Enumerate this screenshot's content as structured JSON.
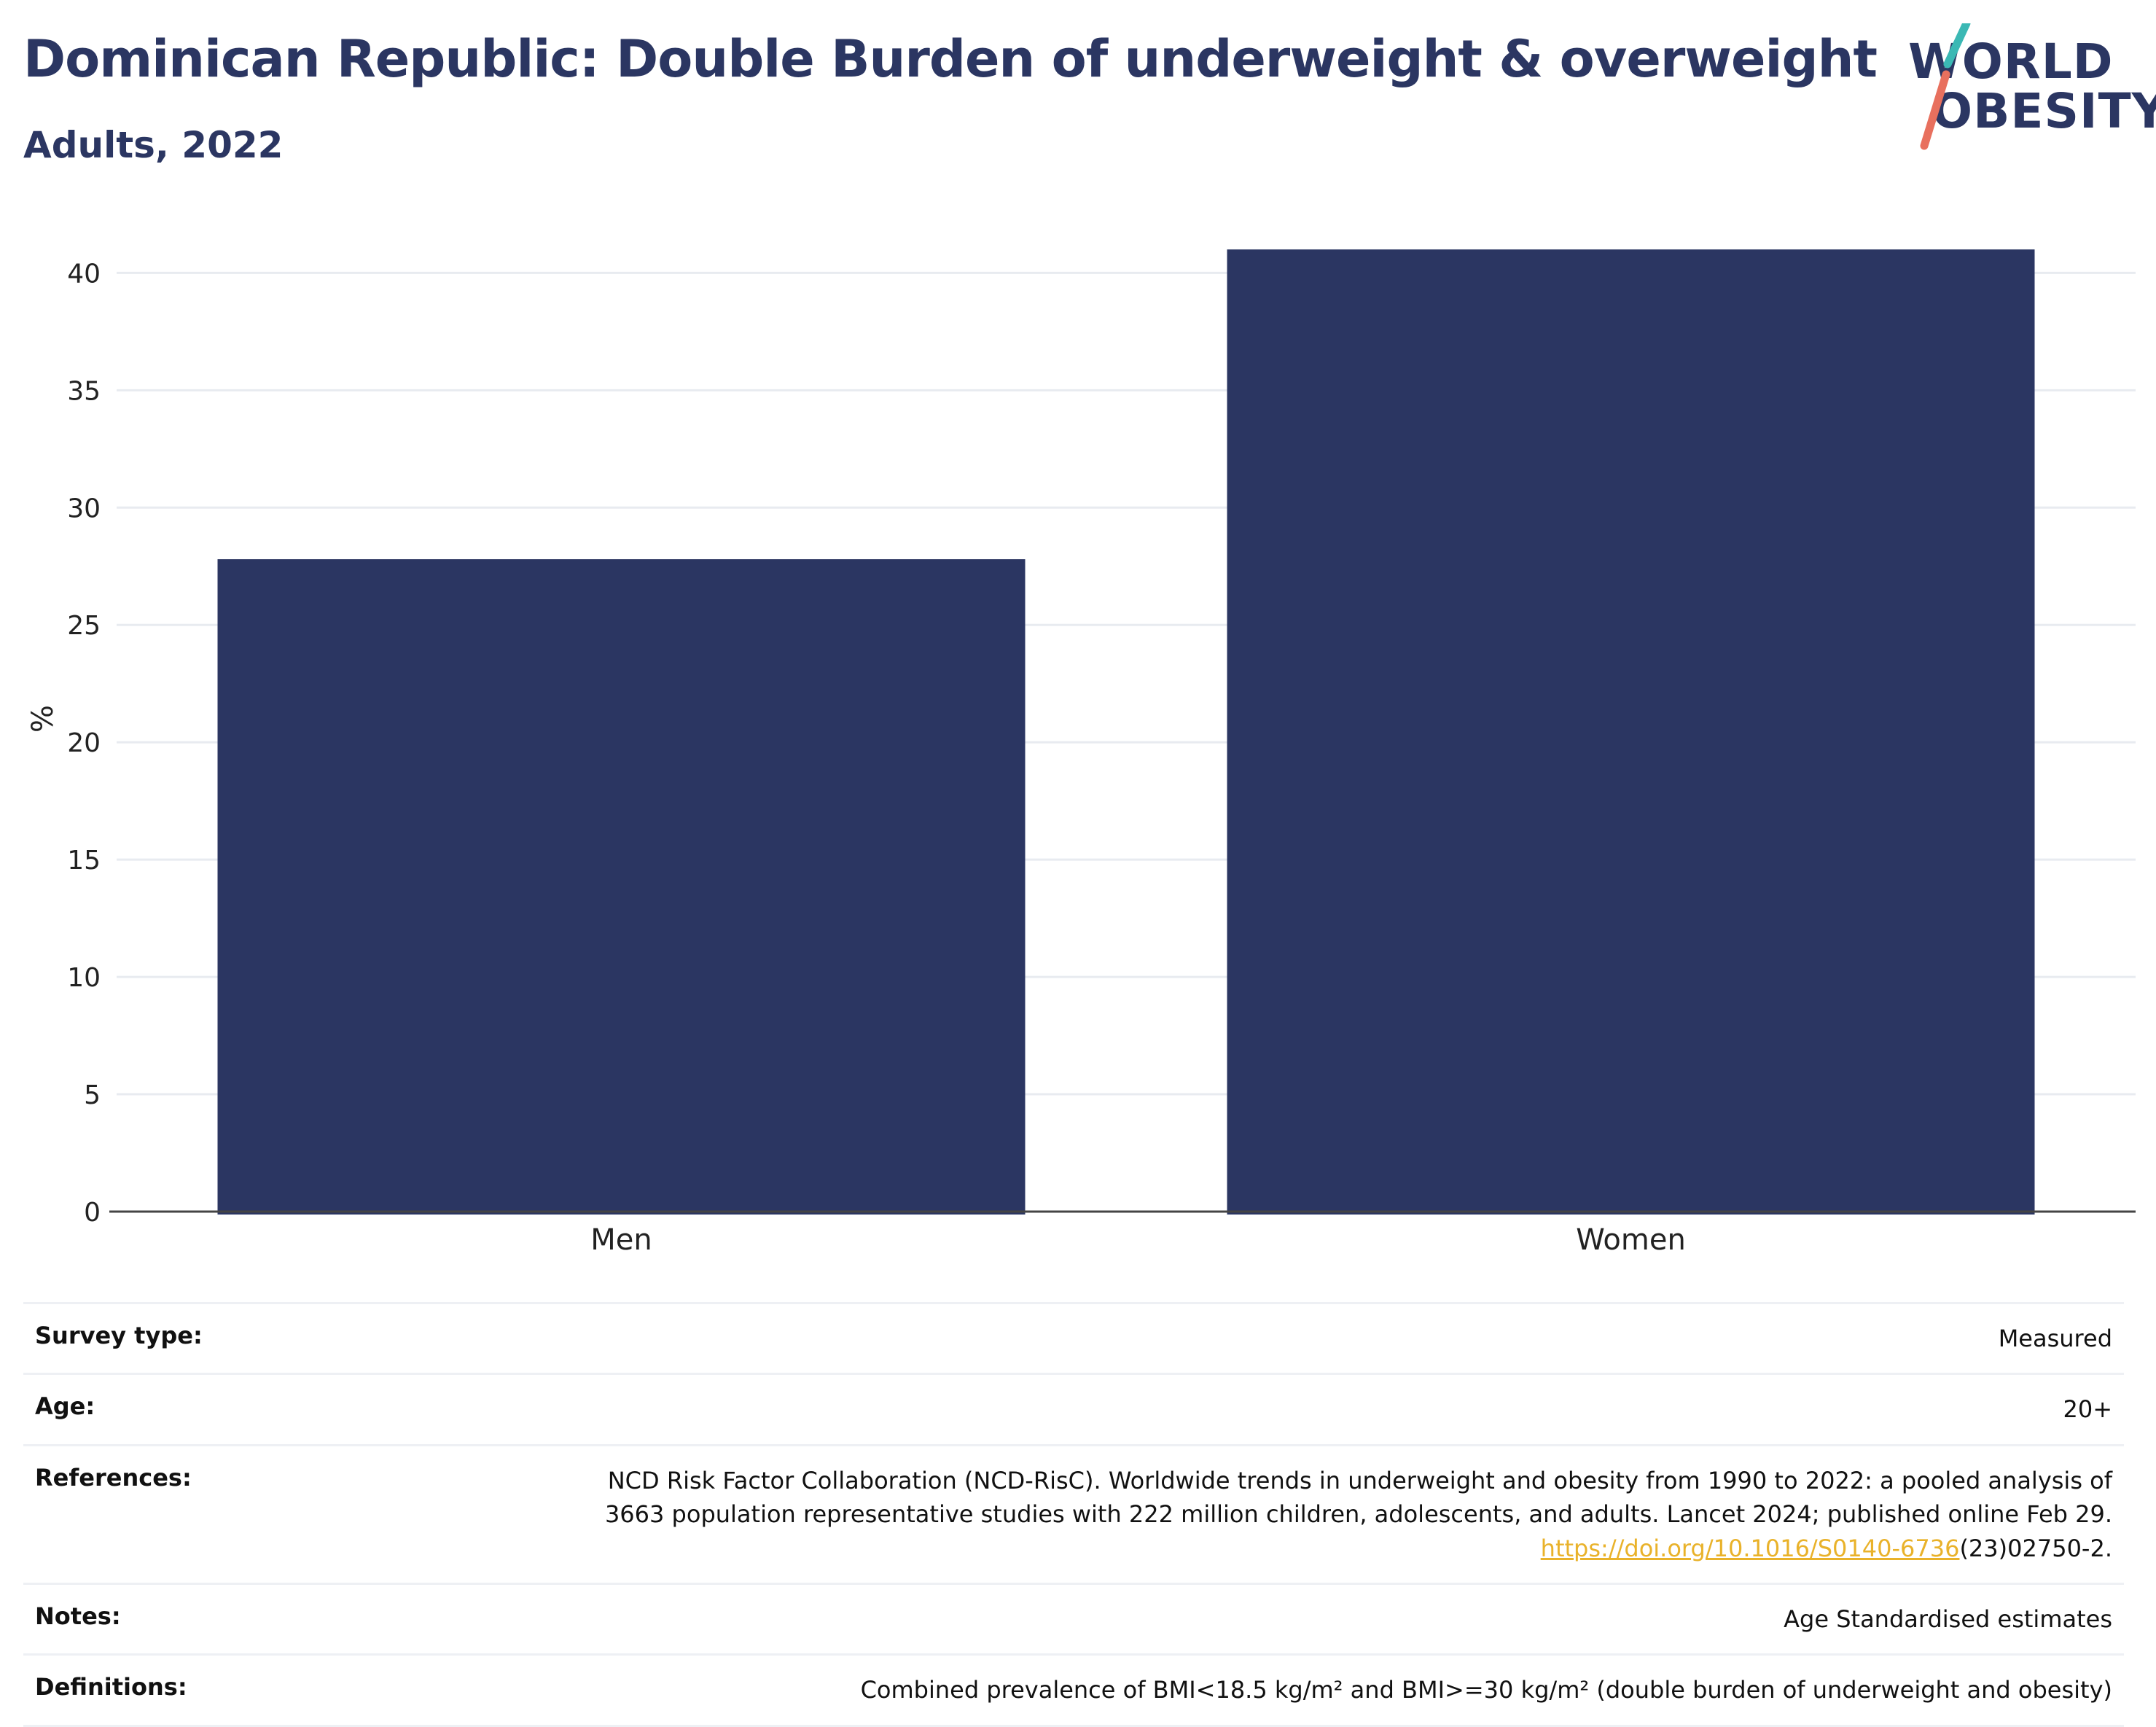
{
  "header": {
    "title": "Dominican Republic: Double Burden of underweight & overweight",
    "subtitle": "Adults, 2022"
  },
  "logo": {
    "line1": "WORLD",
    "line2": "OBESITY",
    "colors": {
      "text": "#2b3662",
      "slash_top": "#3bb8b4",
      "slash_bottom": "#e8705e"
    }
  },
  "chart_data": {
    "type": "bar",
    "categories": [
      "Men",
      "Women"
    ],
    "values": [
      27.8,
      41.0
    ],
    "ylabel": "%",
    "ylim": [
      0,
      42
    ],
    "yticks": [
      0,
      5,
      10,
      15,
      20,
      25,
      30,
      35,
      40
    ],
    "grid": true,
    "bar_color": "#2b3662"
  },
  "info": {
    "survey_type": {
      "label": "Survey type:",
      "value": "Measured"
    },
    "age": {
      "label": "Age:",
      "value": "20+"
    },
    "references": {
      "label": "References:",
      "line1": "NCD Risk Factor Collaboration (NCD-RisC). Worldwide trends in underweight and obesity from 1990 to 2022: a pooled analysis of",
      "line2": "3663 population representative studies with 222 million children, adolescents, and adults. Lancet 2024; published online Feb 29.",
      "link": "https://doi.org/10.1016/S0140-6736",
      "link_suffix": "(23)02750-2."
    },
    "notes": {
      "label": "Notes:",
      "value": "Age Standardised estimates"
    },
    "definitions": {
      "label": "Definitions:",
      "value": "Combined prevalence of BMI<18.5 kg/m² and BMI>=30 kg/m² (double burden of underweight and obesity)"
    }
  }
}
